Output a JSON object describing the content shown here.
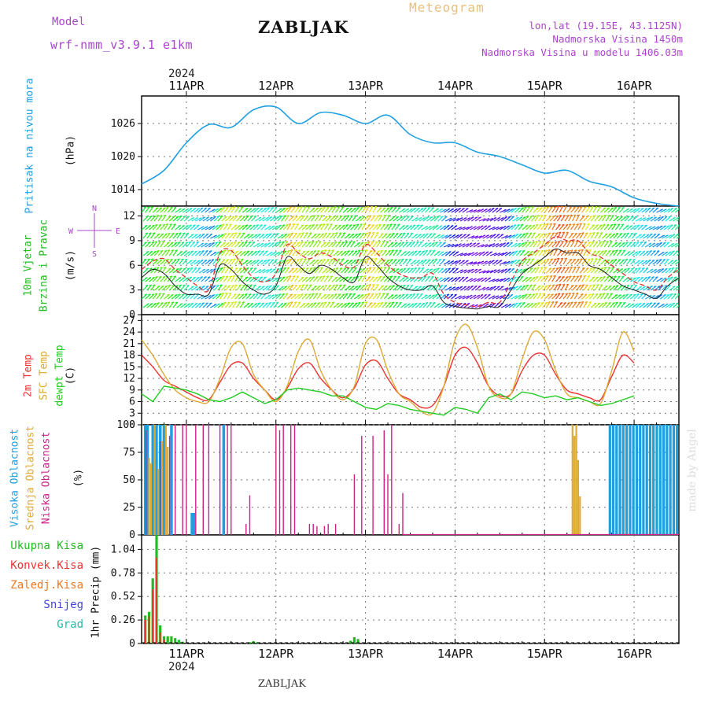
{
  "header": {
    "model_label": "Model",
    "model_name": "wrf-nmm_v3.9.1 e1km",
    "station": "ZABLJAK",
    "product": "Meteogram",
    "coords": "lon,lat (19.15E, 43.1125N)",
    "altitude": "Nadmorska Visina 1450m",
    "model_altitude": "Nadmorska Visina u modelu 1406.03m",
    "year": "2024",
    "footer_station": "ZABLJAK",
    "watermark": "made by Angel"
  },
  "colors": {
    "pressure": "#1e9fe0",
    "wind_label": "#22bb22",
    "temp2m": "#ee3333",
    "sfc": "#ddaa33",
    "dew": "#22cc22",
    "cloud_high": "#1e9fe0",
    "cloud_mid": "#ddaa33",
    "cloud_low": "#cc2288",
    "precip_total": "#22bb22",
    "precip_conv": "#ee3333",
    "precip_frz": "#ee7722",
    "precip_snow": "#4444dd",
    "precip_grad": "#22bbaa",
    "meteogram": "#e8c080",
    "info": "#aa44cc"
  },
  "time_axis": {
    "start": "2024-04-10T12:00",
    "end": "2024-04-16T12:00",
    "tick_labels": [
      "11APR",
      "12APR",
      "13APR",
      "14APR",
      "15APR",
      "16APR"
    ]
  },
  "chart_data": [
    {
      "type": "line",
      "name": "pressure",
      "ylabel": [
        "Pritisak na nivou mora",
        "(hPa)"
      ],
      "yticks": [
        1014,
        1020,
        1026
      ],
      "ylim": [
        1011,
        1031
      ],
      "grid": true,
      "times_h": [
        0,
        6,
        12,
        18,
        24,
        30,
        36,
        42,
        48,
        54,
        60,
        66,
        72,
        78,
        84,
        90,
        96,
        102,
        108,
        114,
        120,
        126,
        132,
        138,
        144
      ],
      "series": [
        {
          "name": "Pritisak na nivou mora",
          "values": [
            1015,
            1017.5,
            1022.5,
            1025.8,
            1025.3,
            1028.5,
            1029,
            1026,
            1028,
            1027.5,
            1026,
            1027.5,
            1024,
            1022.5,
            1022.5,
            1020.8,
            1020,
            1018.5,
            1017,
            1017.5,
            1015.5,
            1014.5,
            1012.5,
            1011.5,
            1011
          ]
        }
      ]
    },
    {
      "type": "line",
      "name": "wind",
      "ylabel": [
        "10m Vjetar",
        "Brzina i Pravac",
        "(m/s)"
      ],
      "compass": [
        "N",
        "E",
        "S",
        "W"
      ],
      "yticks": [
        0,
        3,
        6,
        9,
        12
      ],
      "ylim": [
        0,
        13.2
      ],
      "grid": true,
      "times_h": [
        0,
        3,
        6,
        9,
        12,
        15,
        18,
        21,
        24,
        27,
        30,
        33,
        36,
        39,
        42,
        45,
        48,
        51,
        54,
        57,
        60,
        63,
        66,
        69,
        72,
        75,
        78,
        81,
        84,
        87,
        90,
        93,
        96,
        99,
        102,
        105,
        108,
        111,
        114,
        117,
        120,
        123,
        126,
        129,
        132,
        135,
        138,
        141,
        144
      ],
      "series": [
        {
          "name": "speed",
          "values": [
            5.5,
            6.5,
            6.8,
            5.5,
            4.5,
            3.5,
            3,
            7.5,
            7.8,
            6,
            4.5,
            4,
            5,
            8.5,
            7.5,
            6.8,
            7.5,
            7,
            6,
            5.8,
            8.5,
            7.5,
            6,
            5,
            4.5,
            4.5,
            5,
            2.5,
            1.5,
            1.2,
            1,
            1.5,
            1.5,
            4,
            6.5,
            7.5,
            8.5,
            9.5,
            9,
            9,
            7.5,
            7,
            6,
            5,
            4,
            3.5,
            3,
            4.5,
            5.5
          ]
        },
        {
          "name": "gust",
          "values": [
            4.5,
            5.5,
            5,
            3.5,
            2.5,
            2.5,
            2.5,
            6,
            5.5,
            4,
            3,
            2.5,
            3.5,
            7,
            6,
            5,
            6,
            5.5,
            4.5,
            4,
            7,
            6,
            4.5,
            3.5,
            3,
            3,
            3.5,
            1.5,
            1,
            0.8,
            0.7,
            1,
            1,
            3,
            5,
            6,
            7,
            8,
            7.5,
            7.5,
            6,
            5.5,
            4.5,
            3.5,
            3,
            2.5,
            2,
            3.5,
            4.5
          ]
        }
      ]
    },
    {
      "type": "line",
      "name": "temperature",
      "ylabel": [
        "2m Temp",
        "SFC Temp",
        "dewpt Temp",
        "(C)"
      ],
      "yticks": [
        0,
        3,
        6,
        9,
        12,
        15,
        18,
        21,
        24,
        27
      ],
      "ylim": [
        0,
        28.5
      ],
      "grid": true,
      "times_h": [
        0,
        3,
        6,
        9,
        12,
        15,
        18,
        21,
        24,
        27,
        30,
        33,
        36,
        39,
        42,
        45,
        48,
        51,
        54,
        57,
        60,
        63,
        66,
        69,
        72,
        75,
        78,
        81,
        84,
        87,
        90,
        93,
        96,
        99,
        102,
        105,
        108,
        111,
        114,
        117,
        120,
        123,
        126,
        129,
        132,
        135,
        138,
        141,
        144
      ],
      "series": [
        {
          "name": "2m Temp",
          "values": [
            18,
            15,
            11.5,
            10,
            8.5,
            7,
            6.5,
            11,
            15.5,
            16,
            12,
            9,
            6.5,
            9.5,
            14.5,
            16,
            12,
            9,
            7,
            9.5,
            15.5,
            16.5,
            12,
            8,
            6.5,
            4.5,
            5,
            10,
            18,
            20,
            16,
            10,
            7.5,
            8,
            14,
            18,
            18,
            13,
            9,
            8,
            7,
            6.5,
            12.5,
            18,
            16
          ]
        },
        {
          "name": "SFC Temp",
          "values": [
            22,
            18,
            13,
            9,
            7,
            6,
            6,
            12,
            20,
            21,
            13,
            9,
            6,
            10,
            19,
            22,
            14,
            9,
            6.5,
            10,
            21,
            22,
            14,
            8,
            6,
            3.5,
            3,
            10,
            22,
            26,
            20,
            10,
            7,
            8,
            17,
            24,
            22,
            14,
            8,
            7,
            6,
            5.5,
            14,
            24,
            19
          ]
        },
        {
          "name": "dewpt Temp",
          "values": [
            8,
            6,
            10,
            9.5,
            9,
            8,
            6.5,
            6,
            7,
            8.5,
            7,
            5.5,
            6.5,
            9,
            9.5,
            9,
            8.5,
            7.5,
            7.5,
            6,
            4.5,
            4,
            5.5,
            5,
            4,
            3.5,
            3,
            2.5,
            4.5,
            4,
            3,
            7,
            8,
            6.5,
            8.5,
            8,
            7,
            7.5,
            6.5,
            7,
            6,
            5,
            5.5,
            6.5,
            7.5
          ]
        }
      ]
    },
    {
      "type": "bar",
      "name": "clouds",
      "ylabel": [
        "Visoka Oblacnost",
        "Srednja Oblacnost",
        "Niska Oblacnost",
        "(%)"
      ],
      "yticks": [
        0,
        25,
        50,
        75,
        100
      ],
      "ylim": [
        0,
        100
      ],
      "grid": true,
      "series": [
        {
          "name": "Visoka Oblacnost",
          "times_h": [
            1,
            1.6,
            3,
            4,
            5,
            6,
            8,
            13.5,
            14,
            22
          ],
          "values": [
            100,
            100,
            100,
            100,
            100,
            100,
            100,
            20,
            20,
            100
          ]
        },
        {
          "name": "Srednja Oblacnost",
          "times_h": [
            2,
            2.5,
            3.5,
            4.5,
            5.5,
            6.5,
            7,
            115.5,
            116,
            116.5,
            117,
            117.5
          ],
          "values": [
            70,
            65,
            100,
            60,
            85,
            100,
            80,
            100,
            90,
            100,
            68,
            35
          ]
        },
        {
          "name": "Niska Oblacnost",
          "times_h": [
            1.2,
            5,
            7.5,
            9,
            11,
            12,
            14.5,
            16.5,
            18,
            21,
            23,
            24,
            28,
            29,
            36,
            37,
            38,
            40,
            41,
            45,
            46,
            47,
            49,
            50,
            52,
            57,
            59,
            62,
            65,
            66,
            67,
            69,
            70,
            73,
            75
          ],
          "values": [
            95,
            85,
            90,
            100,
            100,
            100,
            100,
            100,
            100,
            100,
            100,
            100,
            10,
            36,
            100,
            95,
            100,
            100,
            100,
            10,
            10,
            8,
            8,
            10,
            10,
            55,
            90,
            90,
            95,
            55,
            100,
            10,
            38,
            0.5,
            0.5
          ]
        }
      ]
    },
    {
      "type": "bar",
      "name": "precipitation",
      "ylabel": [
        "1hr Precip (mm)"
      ],
      "legend": [
        "Ukupna Kisa",
        "Konvek.Kisa",
        "Zaledj.Kisa",
        "Snijeg",
        "Grad"
      ],
      "yticks": [
        0,
        0.26,
        0.52,
        0.78,
        1.04
      ],
      "ylim": [
        0,
        1.2
      ],
      "grid": true,
      "series": [
        {
          "name": "Ukupna Kisa",
          "times_h": [
            1,
            2,
            3,
            4,
            5,
            6,
            7,
            8,
            9,
            10,
            11,
            29,
            30,
            31,
            56,
            57,
            58
          ],
          "values": [
            0.31,
            0.35,
            0.72,
            1.2,
            0.2,
            0.08,
            0.08,
            0.08,
            0.06,
            0.04,
            0.02,
            0.015,
            0.025,
            0.015,
            0.03,
            0.07,
            0.05
          ]
        },
        {
          "name": "Konvek.Kisa",
          "times_h": [
            1,
            2,
            3,
            4,
            5,
            6
          ],
          "values": [
            0.26,
            0.3,
            0.6,
            0.95,
            0.12,
            0.04
          ]
        }
      ]
    }
  ]
}
